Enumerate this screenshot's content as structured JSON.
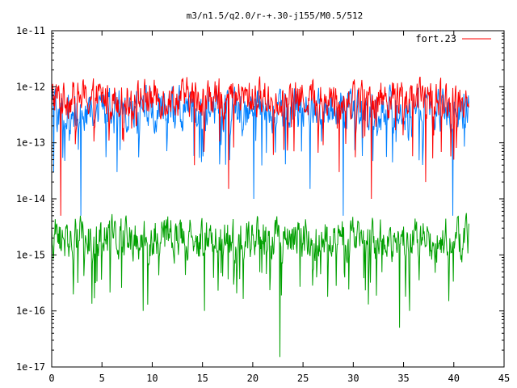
{
  "chart_data": {
    "type": "line",
    "title": "m3/n1.5/q2.0/r-+.30-j155/M0.5/512",
    "xlabel": "",
    "ylabel": "",
    "xlim": [
      0,
      45
    ],
    "ylim": [
      1e-17,
      1e-11
    ],
    "yscale": "log",
    "grid": false,
    "legend_position": "top-right",
    "x_ticks": [
      0,
      5,
      10,
      15,
      20,
      25,
      30,
      35,
      40,
      45
    ],
    "x_tick_labels": [
      "0",
      "5",
      "10",
      "15",
      "20",
      "25",
      "30",
      "35",
      "40",
      "45"
    ],
    "y_ticks": [
      1e-17,
      1e-16,
      1e-15,
      1e-14,
      1e-13,
      1e-12,
      1e-11
    ],
    "y_tick_labels": [
      "1e-17",
      "1e-16",
      "1e-15",
      "1e-14",
      "1e-13",
      "1e-12",
      "1e-11"
    ],
    "legend": [
      {
        "label": "fort.23",
        "color": "#ff0000"
      }
    ],
    "series": [
      {
        "name": "fort.23",
        "color": "#ff0000",
        "x_range": [
          0,
          41.5
        ],
        "x_step": 0.05,
        "typical_band": [
          2e-13,
          1.6e-12
        ],
        "typical_log10_mean": -12.2,
        "spikes": [
          {
            "x": 0.9,
            "y": 5e-15
          },
          {
            "x": 14.2,
            "y": 4e-14
          },
          {
            "x": 17.6,
            "y": 1.5e-14
          },
          {
            "x": 28.6,
            "y": 3e-14
          },
          {
            "x": 31.8,
            "y": 1e-14
          },
          {
            "x": 37.2,
            "y": 2e-14
          },
          {
            "x": 40.0,
            "y": 5e-14
          }
        ]
      },
      {
        "color": "#0080ff",
        "x_range": [
          0,
          41.5
        ],
        "x_step": 0.05,
        "typical_band": [
          1.5e-13,
          1.5e-12
        ],
        "typical_log10_mean": -12.4,
        "spikes": [
          {
            "x": 0.2,
            "y": 3e-14
          },
          {
            "x": 2.9,
            "y": 5e-15
          },
          {
            "x": 6.5,
            "y": 3e-14
          },
          {
            "x": 20.1,
            "y": 1e-14
          },
          {
            "x": 25.7,
            "y": 1.5e-14
          },
          {
            "x": 29.0,
            "y": 5e-15
          },
          {
            "x": 39.9,
            "y": 5e-15
          }
        ]
      },
      {
        "color": "#00a000",
        "x_range": [
          0,
          41.5
        ],
        "x_step": 0.05,
        "typical_band": [
          5e-16,
          5e-15
        ],
        "typical_log10_mean": -14.7,
        "spikes": [
          {
            "x": 9.1,
            "y": 1e-16
          },
          {
            "x": 15.2,
            "y": 1e-16
          },
          {
            "x": 22.7,
            "y": 1.5e-17
          },
          {
            "x": 34.6,
            "y": 5e-17
          },
          {
            "x": 35.6,
            "y": 1e-16
          }
        ]
      }
    ]
  }
}
